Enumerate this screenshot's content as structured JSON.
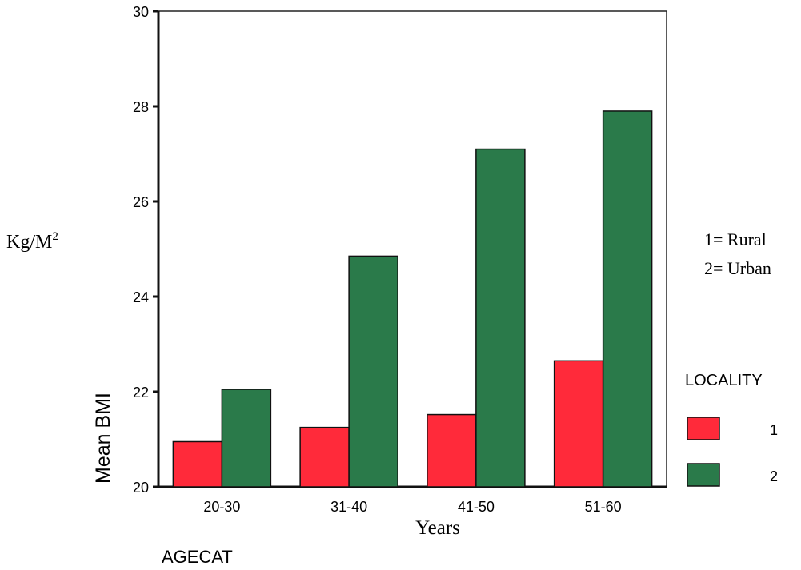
{
  "chart_data": {
    "type": "bar",
    "categories": [
      "20-30",
      "31-40",
      "41-50",
      "51-60"
    ],
    "series": [
      {
        "name": "1",
        "values": [
          20.95,
          21.25,
          21.52,
          22.65
        ],
        "color": "#ff2a3a"
      },
      {
        "name": "2",
        "values": [
          22.05,
          24.85,
          27.1,
          27.9
        ],
        "color": "#2a7a4a"
      }
    ],
    "ylim": [
      20,
      30
    ],
    "yticks": [
      20,
      22,
      24,
      26,
      28,
      30
    ],
    "ylabel": "Mean BMI",
    "xlabel": "AGECAT",
    "legend_title": "LOCALITY",
    "legend_position": "right",
    "grid": false,
    "annotations": {
      "unit_base": "Kg/M",
      "unit_sup": "2",
      "years": "Years",
      "key_rural": "1= Rural",
      "key_urban": "2= Urban"
    }
  }
}
